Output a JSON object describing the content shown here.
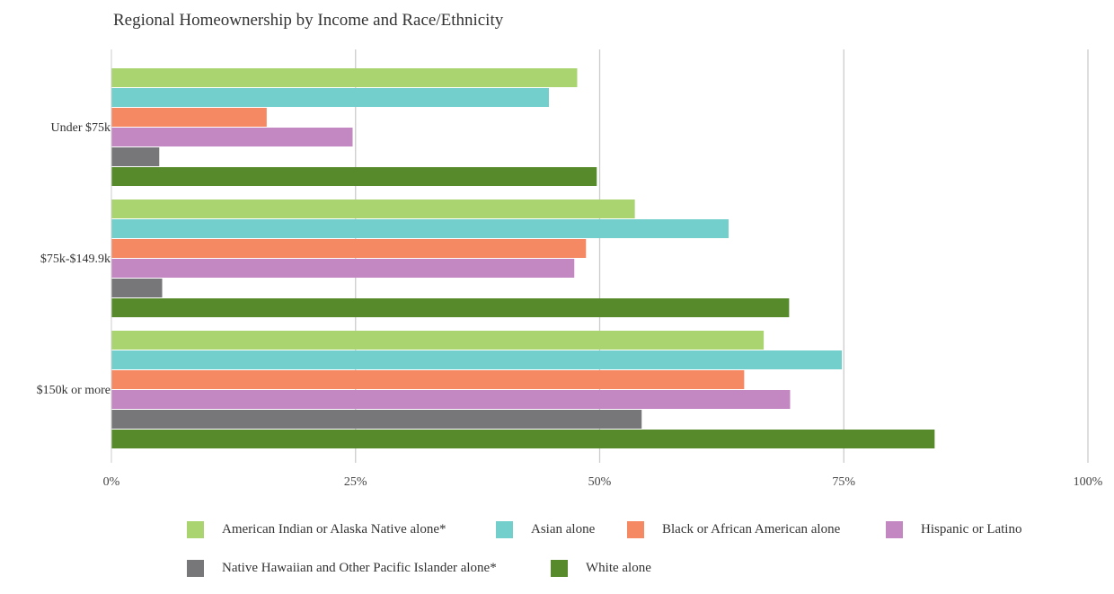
{
  "chart_data": {
    "type": "bar",
    "orientation": "horizontal",
    "title": "Regional Homeownership by Income and Race/Ethnicity",
    "categories": [
      "Under $75k",
      "$75k-$149.9k",
      "$150k or more"
    ],
    "xlim": [
      0,
      100
    ],
    "xticks": [
      "0%",
      "25%",
      "50%",
      "75%",
      "100%"
    ],
    "grid": true,
    "legend_position": "bottom",
    "series": [
      {
        "name": "American Indian or Alaska Native alone*",
        "color": "#a9d46f",
        "values": [
          47.7,
          53.6,
          66.8
        ]
      },
      {
        "name": "Asian alone",
        "color": "#72cfcb",
        "values": [
          44.8,
          63.2,
          74.8
        ]
      },
      {
        "name": "Black or African American alone",
        "color": "#f58963",
        "values": [
          15.9,
          48.6,
          64.8
        ]
      },
      {
        "name": "Hispanic or Latino",
        "color": "#c388c2",
        "values": [
          24.7,
          47.4,
          69.5
        ]
      },
      {
        "name": "Native Hawaiian and Other Pacific Islander alone*",
        "color": "#77777a",
        "values": [
          4.9,
          5.2,
          54.3
        ]
      },
      {
        "name": "White alone",
        "color": "#578a2a",
        "values": [
          49.7,
          69.4,
          84.3
        ]
      }
    ]
  }
}
